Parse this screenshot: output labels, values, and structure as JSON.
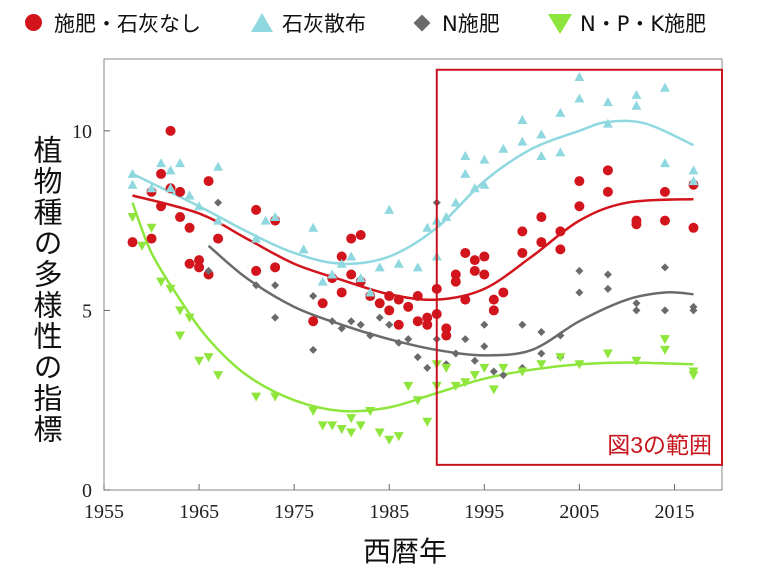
{
  "legend": [
    {
      "label": "施肥・石灰なし",
      "symbol": "circle",
      "color": "#d2141c"
    },
    {
      "label": "石灰散布",
      "symbol": "triangle-up",
      "color": "#8fd8e0"
    },
    {
      "label": "N施肥",
      "symbol": "diamond",
      "color": "#6a6a6a"
    },
    {
      "label": "N・P・K施肥",
      "symbol": "triangle-down",
      "color": "#8ee63c"
    }
  ],
  "annotation": {
    "label": "図3の範囲",
    "color": "#c8141c",
    "x_range": [
      1990,
      2020
    ],
    "y_range": [
      0.7,
      11.7
    ]
  },
  "chart_data": {
    "type": "scatter",
    "xlabel": "西暦年",
    "ylabel": "植物種の多様性の指標",
    "xlim": [
      1955,
      2020
    ],
    "ylim": [
      0,
      12
    ],
    "x_ticks": [
      "1955",
      "1965",
      "1975",
      "1985",
      "1995",
      "2005",
      "2015"
    ],
    "y_ticks": [
      "0",
      "5",
      "10"
    ],
    "grid": false,
    "legend_position": "top",
    "series": [
      {
        "name": "施肥・石灰なし",
        "color": "#d2141c",
        "marker": "circle",
        "points": [
          [
            1958,
            6.9
          ],
          [
            1960,
            7.0
          ],
          [
            1960,
            8.3
          ],
          [
            1961,
            7.9
          ],
          [
            1961,
            8.8
          ],
          [
            1962,
            10.0
          ],
          [
            1962,
            8.4
          ],
          [
            1963,
            7.6
          ],
          [
            1963,
            8.3
          ],
          [
            1964,
            6.3
          ],
          [
            1964,
            7.3
          ],
          [
            1965,
            6.4
          ],
          [
            1965,
            6.2
          ],
          [
            1966,
            8.6
          ],
          [
            1966,
            6.0
          ],
          [
            1967,
            7.0
          ],
          [
            1971,
            7.8
          ],
          [
            1971,
            6.1
          ],
          [
            1973,
            7.5
          ],
          [
            1973,
            6.2
          ],
          [
            1977,
            4.7
          ],
          [
            1978,
            5.2
          ],
          [
            1979,
            5.9
          ],
          [
            1980,
            5.5
          ],
          [
            1980,
            6.5
          ],
          [
            1981,
            6.0
          ],
          [
            1981,
            7.0
          ],
          [
            1982,
            7.1
          ],
          [
            1982,
            5.8
          ],
          [
            1983,
            5.4
          ],
          [
            1984,
            5.2
          ],
          [
            1985,
            5.4
          ],
          [
            1985,
            5.0
          ],
          [
            1986,
            4.6
          ],
          [
            1986,
            5.3
          ],
          [
            1987,
            5.1
          ],
          [
            1988,
            5.4
          ],
          [
            1988,
            4.7
          ],
          [
            1989,
            4.8
          ],
          [
            1989,
            4.6
          ],
          [
            1990,
            5.6
          ],
          [
            1990,
            4.9
          ],
          [
            1991,
            4.5
          ],
          [
            1991,
            4.3
          ],
          [
            1992,
            5.8
          ],
          [
            1992,
            6.0
          ],
          [
            1993,
            6.6
          ],
          [
            1993,
            5.3
          ],
          [
            1994,
            6.1
          ],
          [
            1994,
            6.4
          ],
          [
            1995,
            6.5
          ],
          [
            1995,
            6.0
          ],
          [
            1996,
            5.0
          ],
          [
            1996,
            5.3
          ],
          [
            1997,
            5.5
          ],
          [
            1999,
            7.2
          ],
          [
            1999,
            6.6
          ],
          [
            2001,
            7.6
          ],
          [
            2001,
            6.9
          ],
          [
            2003,
            6.7
          ],
          [
            2003,
            7.2
          ],
          [
            2005,
            8.6
          ],
          [
            2005,
            7.9
          ],
          [
            2008,
            8.3
          ],
          [
            2008,
            8.9
          ],
          [
            2011,
            7.4
          ],
          [
            2011,
            7.5
          ],
          [
            2014,
            8.3
          ],
          [
            2014,
            7.5
          ],
          [
            2017,
            8.5
          ],
          [
            2017,
            7.3
          ]
        ],
        "trend": [
          [
            1958,
            8.2
          ],
          [
            1965,
            7.7
          ],
          [
            1970,
            7.0
          ],
          [
            1975,
            6.3
          ],
          [
            1980,
            5.85
          ],
          [
            1985,
            5.45
          ],
          [
            1990,
            5.3
          ],
          [
            1995,
            5.6
          ],
          [
            2000,
            6.5
          ],
          [
            2005,
            7.5
          ],
          [
            2010,
            8.0
          ],
          [
            2017,
            8.1
          ]
        ]
      },
      {
        "name": "石灰散布",
        "color": "#8fd8e0",
        "marker": "triangle-up",
        "points": [
          [
            1958,
            8.8
          ],
          [
            1958,
            8.5
          ],
          [
            1960,
            8.4
          ],
          [
            1961,
            9.1
          ],
          [
            1962,
            8.9
          ],
          [
            1962,
            8.4
          ],
          [
            1963,
            9.1
          ],
          [
            1964,
            8.2
          ],
          [
            1965,
            7.9
          ],
          [
            1967,
            9.0
          ],
          [
            1967,
            7.5
          ],
          [
            1971,
            7.0
          ],
          [
            1972,
            7.5
          ],
          [
            1973,
            7.6
          ],
          [
            1976,
            6.7
          ],
          [
            1977,
            7.3
          ],
          [
            1978,
            5.8
          ],
          [
            1979,
            6.0
          ],
          [
            1980,
            6.3
          ],
          [
            1981,
            6.5
          ],
          [
            1982,
            5.9
          ],
          [
            1983,
            5.5
          ],
          [
            1984,
            6.2
          ],
          [
            1985,
            7.8
          ],
          [
            1986,
            6.3
          ],
          [
            1988,
            6.2
          ],
          [
            1989,
            7.3
          ],
          [
            1990,
            7.5
          ],
          [
            1990,
            6.5
          ],
          [
            1991,
            7.6
          ],
          [
            1992,
            8.0
          ],
          [
            1993,
            8.8
          ],
          [
            1993,
            9.3
          ],
          [
            1994,
            8.4
          ],
          [
            1995,
            9.2
          ],
          [
            1995,
            8.5
          ],
          [
            1997,
            9.5
          ],
          [
            1999,
            10.3
          ],
          [
            1999,
            9.7
          ],
          [
            2001,
            9.3
          ],
          [
            2001,
            9.9
          ],
          [
            2003,
            10.5
          ],
          [
            2003,
            9.4
          ],
          [
            2005,
            11.5
          ],
          [
            2005,
            10.9
          ],
          [
            2008,
            10.8
          ],
          [
            2008,
            10.2
          ],
          [
            2011,
            11.0
          ],
          [
            2011,
            10.7
          ],
          [
            2014,
            11.2
          ],
          [
            2014,
            9.1
          ],
          [
            2017,
            8.9
          ],
          [
            2017,
            8.6
          ]
        ],
        "trend": [
          [
            1958,
            8.8
          ],
          [
            1965,
            7.9
          ],
          [
            1970,
            7.2
          ],
          [
            1975,
            6.6
          ],
          [
            1980,
            6.3
          ],
          [
            1985,
            6.5
          ],
          [
            1990,
            7.3
          ],
          [
            1995,
            8.6
          ],
          [
            2000,
            9.5
          ],
          [
            2005,
            10.0
          ],
          [
            2008,
            10.25
          ],
          [
            2012,
            10.2
          ],
          [
            2017,
            9.6
          ]
        ]
      },
      {
        "name": "N施肥",
        "color": "#6a6a6a",
        "marker": "diamond",
        "points": [
          [
            1966,
            6.1
          ],
          [
            1967,
            8.0
          ],
          [
            1971,
            5.7
          ],
          [
            1973,
            4.8
          ],
          [
            1973,
            5.7
          ],
          [
            1977,
            3.9
          ],
          [
            1977,
            5.4
          ],
          [
            1979,
            4.7
          ],
          [
            1980,
            4.5
          ],
          [
            1981,
            4.7
          ],
          [
            1982,
            4.6
          ],
          [
            1983,
            4.3
          ],
          [
            1984,
            4.8
          ],
          [
            1985,
            4.6
          ],
          [
            1986,
            4.1
          ],
          [
            1987,
            4.2
          ],
          [
            1988,
            3.7
          ],
          [
            1989,
            3.4
          ],
          [
            1990,
            4.2
          ],
          [
            1990,
            8.0
          ],
          [
            1991,
            3.5
          ],
          [
            1992,
            3.8
          ],
          [
            1993,
            4.2
          ],
          [
            1994,
            3.6
          ],
          [
            1995,
            4.6
          ],
          [
            1995,
            4.0
          ],
          [
            1996,
            3.3
          ],
          [
            1997,
            3.2
          ],
          [
            1999,
            4.6
          ],
          [
            1999,
            3.4
          ],
          [
            2001,
            4.4
          ],
          [
            2001,
            3.8
          ],
          [
            2003,
            4.3
          ],
          [
            2003,
            3.7
          ],
          [
            2005,
            6.1
          ],
          [
            2005,
            5.5
          ],
          [
            2008,
            6.0
          ],
          [
            2008,
            5.6
          ],
          [
            2011,
            5.2
          ],
          [
            2011,
            5.0
          ],
          [
            2014,
            6.2
          ],
          [
            2014,
            5.0
          ],
          [
            2017,
            5.1
          ],
          [
            2017,
            5.0
          ]
        ],
        "trend": [
          [
            1966,
            6.8
          ],
          [
            1970,
            5.9
          ],
          [
            1975,
            5.1
          ],
          [
            1980,
            4.6
          ],
          [
            1985,
            4.2
          ],
          [
            1990,
            3.9
          ],
          [
            1995,
            3.75
          ],
          [
            2000,
            3.9
          ],
          [
            2005,
            4.7
          ],
          [
            2010,
            5.3
          ],
          [
            2014,
            5.5
          ],
          [
            2017,
            5.45
          ]
        ]
      },
      {
        "name": "N・P・K施肥",
        "color": "#8ee63c",
        "marker": "triangle-down",
        "points": [
          [
            1958,
            7.6
          ],
          [
            1959,
            6.8
          ],
          [
            1960,
            7.3
          ],
          [
            1961,
            5.8
          ],
          [
            1962,
            5.6
          ],
          [
            1963,
            4.3
          ],
          [
            1963,
            5.0
          ],
          [
            1964,
            4.8
          ],
          [
            1965,
            3.6
          ],
          [
            1966,
            3.7
          ],
          [
            1967,
            3.2
          ],
          [
            1971,
            2.6
          ],
          [
            1973,
            2.6
          ],
          [
            1977,
            2.2
          ],
          [
            1978,
            1.8
          ],
          [
            1979,
            1.8
          ],
          [
            1980,
            1.7
          ],
          [
            1981,
            2.0
          ],
          [
            1981,
            1.6
          ],
          [
            1982,
            1.8
          ],
          [
            1983,
            2.2
          ],
          [
            1984,
            1.6
          ],
          [
            1985,
            1.4
          ],
          [
            1986,
            1.5
          ],
          [
            1987,
            2.9
          ],
          [
            1988,
            2.5
          ],
          [
            1989,
            1.9
          ],
          [
            1990,
            2.9
          ],
          [
            1990,
            3.5
          ],
          [
            1991,
            3.4
          ],
          [
            1992,
            2.9
          ],
          [
            1993,
            3.0
          ],
          [
            1994,
            3.2
          ],
          [
            1995,
            3.4
          ],
          [
            1996,
            2.8
          ],
          [
            1997,
            3.4
          ],
          [
            1999,
            3.3
          ],
          [
            2001,
            3.5
          ],
          [
            2003,
            3.7
          ],
          [
            2005,
            3.5
          ],
          [
            2008,
            3.8
          ],
          [
            2011,
            3.6
          ],
          [
            2014,
            4.2
          ],
          [
            2014,
            3.9
          ],
          [
            2017,
            3.3
          ],
          [
            2017,
            3.2
          ]
        ],
        "trend": [
          [
            1958,
            8.0
          ],
          [
            1960,
            6.6
          ],
          [
            1963,
            5.3
          ],
          [
            1966,
            4.2
          ],
          [
            1970,
            3.2
          ],
          [
            1975,
            2.5
          ],
          [
            1980,
            2.2
          ],
          [
            1985,
            2.3
          ],
          [
            1990,
            2.7
          ],
          [
            1995,
            3.1
          ],
          [
            2000,
            3.35
          ],
          [
            2005,
            3.5
          ],
          [
            2010,
            3.55
          ],
          [
            2017,
            3.5
          ]
        ]
      }
    ]
  }
}
